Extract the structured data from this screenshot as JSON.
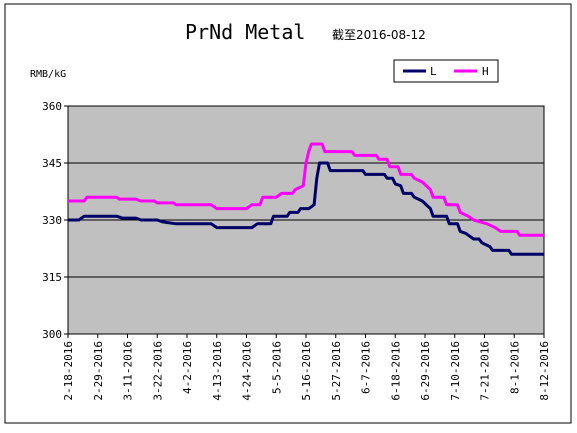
{
  "chart_data": {
    "type": "line",
    "title": "PrNd Metal",
    "subtitle": "截至2016-08-12",
    "ylabel": "RMB/kG",
    "xlabel": "",
    "ylim": [
      300,
      360
    ],
    "yticks": [
      300,
      315,
      330,
      345,
      360
    ],
    "grid": true,
    "legend_position": "top-right",
    "x": [
      "2-18-2016",
      "2-29-2016",
      "3-11-2016",
      "3-22-2016",
      "4-2-2016",
      "4-13-2016",
      "4-24-2016",
      "5-5-2016",
      "5-16-2016",
      "5-27-2016",
      "6-7-2016",
      "6-18-2016",
      "6-29-2016",
      "7-10-2016",
      "7-21-2016",
      "8-1-2016",
      "8-12-2016"
    ],
    "series": [
      {
        "name": "L",
        "color": "#000066",
        "points": [
          [
            "2-18-2016",
            330
          ],
          [
            "2-22-2016",
            330
          ],
          [
            "2-24-2016",
            331
          ],
          [
            "2-29-2016",
            331
          ],
          [
            "3-7-2016",
            331
          ],
          [
            "3-9-2016",
            330.5
          ],
          [
            "3-14-2016",
            330.5
          ],
          [
            "3-16-2016",
            330
          ],
          [
            "3-22-2016",
            330
          ],
          [
            "3-24-2016",
            329.5
          ],
          [
            "3-29-2016",
            329
          ],
          [
            "4-11-2016",
            329
          ],
          [
            "4-13-2016",
            328
          ],
          [
            "4-26-2016",
            328
          ],
          [
            "4-28-2016",
            329
          ],
          [
            "5-3-2016",
            329
          ],
          [
            "5-4-2016",
            331
          ],
          [
            "5-9-2016",
            331
          ],
          [
            "5-10-2016",
            332
          ],
          [
            "5-13-2016",
            332
          ],
          [
            "5-14-2016",
            333
          ],
          [
            "5-17-2016",
            333
          ],
          [
            "5-19-2016",
            334
          ],
          [
            "5-20-2016",
            341
          ],
          [
            "5-21-2016",
            345
          ],
          [
            "5-24-2016",
            345
          ],
          [
            "5-25-2016",
            343
          ],
          [
            "6-6-2016",
            343
          ],
          [
            "6-7-2016",
            342
          ],
          [
            "6-14-2016",
            342
          ],
          [
            "6-15-2016",
            341
          ],
          [
            "6-17-2016",
            341
          ],
          [
            "6-18-2016",
            339.5
          ],
          [
            "6-20-2016",
            339
          ],
          [
            "6-21-2016",
            337
          ],
          [
            "6-24-2016",
            337
          ],
          [
            "6-25-2016",
            336
          ],
          [
            "6-28-2016",
            335
          ],
          [
            "7-1-2016",
            333
          ],
          [
            "7-2-2016",
            331
          ],
          [
            "7-7-2016",
            331
          ],
          [
            "7-8-2016",
            329
          ],
          [
            "7-11-2016",
            329
          ],
          [
            "7-12-2016",
            327
          ],
          [
            "7-14-2016",
            326.5
          ],
          [
            "7-15-2016",
            326
          ],
          [
            "7-17-2016",
            325
          ],
          [
            "7-19-2016",
            325
          ],
          [
            "7-20-2016",
            324
          ],
          [
            "7-23-2016",
            323
          ],
          [
            "7-24-2016",
            322
          ],
          [
            "7-30-2016",
            322
          ],
          [
            "7-31-2016",
            321
          ],
          [
            "8-12-2016",
            321
          ]
        ]
      },
      {
        "name": "H",
        "color": "#FF00FF",
        "points": [
          [
            "2-18-2016",
            335
          ],
          [
            "2-24-2016",
            335
          ],
          [
            "2-25-2016",
            336
          ],
          [
            "3-7-2016",
            336
          ],
          [
            "3-8-2016",
            335.5
          ],
          [
            "3-14-2016",
            335.5
          ],
          [
            "3-16-2016",
            335
          ],
          [
            "3-21-2016",
            335
          ],
          [
            "3-22-2016",
            334.5
          ],
          [
            "3-28-2016",
            334.5
          ],
          [
            "3-29-2016",
            334
          ],
          [
            "4-11-2016",
            334
          ],
          [
            "4-13-2016",
            333
          ],
          [
            "4-24-2016",
            333
          ],
          [
            "4-26-2016",
            334
          ],
          [
            "4-29-2016",
            334
          ],
          [
            "4-30-2016",
            336
          ],
          [
            "5-5-2016",
            336
          ],
          [
            "5-7-2016",
            337
          ],
          [
            "5-11-2016",
            337
          ],
          [
            "5-12-2016",
            338
          ],
          [
            "5-15-2016",
            339
          ],
          [
            "5-16-2016",
            345
          ],
          [
            "5-17-2016",
            348
          ],
          [
            "5-18-2016",
            350
          ],
          [
            "5-22-2016",
            350
          ],
          [
            "5-23-2016",
            348
          ],
          [
            "6-2-2016",
            348
          ],
          [
            "6-3-2016",
            347
          ],
          [
            "6-11-2016",
            347
          ],
          [
            "6-12-2016",
            346
          ],
          [
            "6-15-2016",
            346
          ],
          [
            "6-16-2016",
            344
          ],
          [
            "6-19-2016",
            344
          ],
          [
            "6-20-2016",
            342
          ],
          [
            "6-24-2016",
            342
          ],
          [
            "6-25-2016",
            341
          ],
          [
            "6-28-2016",
            340
          ],
          [
            "7-1-2016",
            338
          ],
          [
            "7-2-2016",
            336
          ],
          [
            "7-6-2016",
            336
          ],
          [
            "7-7-2016",
            334
          ],
          [
            "7-11-2016",
            334
          ],
          [
            "7-12-2016",
            332
          ],
          [
            "7-15-2016",
            331
          ],
          [
            "7-17-2016",
            330
          ],
          [
            "7-22-2016",
            329
          ],
          [
            "7-25-2016",
            328
          ],
          [
            "7-27-2016",
            327
          ],
          [
            "8-2-2016",
            327
          ],
          [
            "8-3-2016",
            326
          ],
          [
            "8-12-2016",
            326
          ]
        ]
      }
    ]
  }
}
